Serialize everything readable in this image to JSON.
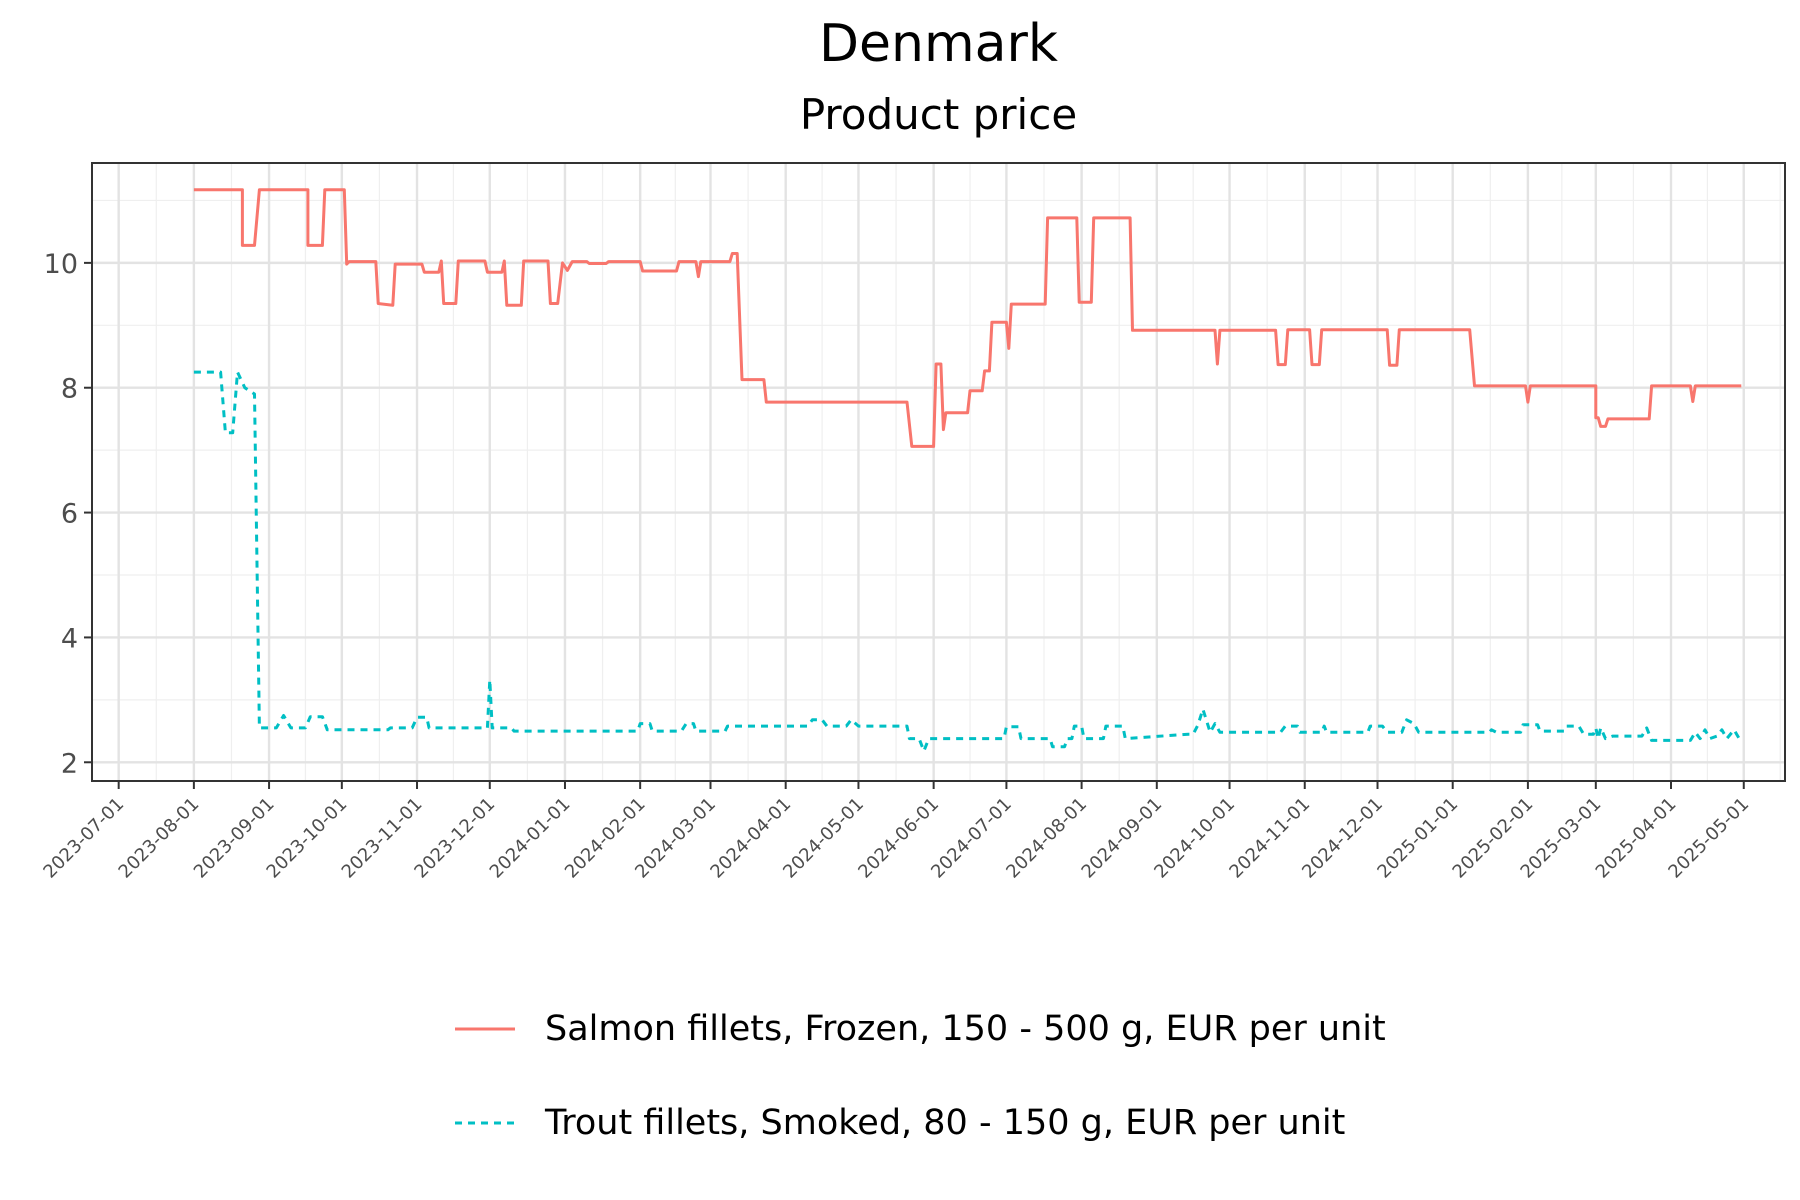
{
  "chart_data": {
    "type": "line",
    "title": "Denmark",
    "subtitle": "Product price",
    "xlabel": "",
    "ylabel": "",
    "x_range": [
      "2023-06-20",
      "2025-05-18"
    ],
    "y_range": [
      1.7,
      11.6
    ],
    "y_ticks": [
      2,
      4,
      6,
      8,
      10
    ],
    "x_ticks": [
      "2023-07-01",
      "2023-08-01",
      "2023-09-01",
      "2023-10-01",
      "2023-11-01",
      "2023-12-01",
      "2024-01-01",
      "2024-02-01",
      "2024-03-01",
      "2024-04-01",
      "2024-05-01",
      "2024-06-01",
      "2024-07-01",
      "2024-08-01",
      "2024-09-01",
      "2024-10-01",
      "2024-11-01",
      "2024-12-01",
      "2025-01-01",
      "2025-02-01",
      "2025-03-01",
      "2025-04-01",
      "2025-05-01"
    ],
    "grid": true,
    "legend_position": "bottom",
    "series": [
      {
        "name": "Salmon fillets, Frozen, 150 - 500 g, EUR per unit",
        "color": "#f8766d",
        "line_style": "solid",
        "points": [
          [
            "2023-08-01",
            11.17
          ],
          [
            "2023-08-21",
            11.17
          ],
          [
            "2023-08-21",
            10.28
          ],
          [
            "2023-08-26",
            10.28
          ],
          [
            "2023-08-28",
            11.17
          ],
          [
            "2023-09-17",
            11.17
          ],
          [
            "2023-09-17",
            10.28
          ],
          [
            "2023-09-23",
            10.28
          ],
          [
            "2023-09-24",
            11.17
          ],
          [
            "2023-10-02",
            11.17
          ],
          [
            "2023-10-03",
            9.98
          ],
          [
            "2023-10-04",
            10.02
          ],
          [
            "2023-10-15",
            10.02
          ],
          [
            "2023-10-16",
            9.35
          ],
          [
            "2023-10-22",
            9.32
          ],
          [
            "2023-10-23",
            9.98
          ],
          [
            "2023-11-03",
            9.98
          ],
          [
            "2023-11-04",
            9.85
          ],
          [
            "2023-11-10",
            9.85
          ],
          [
            "2023-11-11",
            10.03
          ],
          [
            "2023-11-12",
            9.35
          ],
          [
            "2023-11-17",
            9.35
          ],
          [
            "2023-11-18",
            10.03
          ],
          [
            "2023-11-29",
            10.03
          ],
          [
            "2023-11-30",
            9.85
          ],
          [
            "2023-12-06",
            9.85
          ],
          [
            "2023-12-07",
            10.03
          ],
          [
            "2023-12-08",
            9.32
          ],
          [
            "2023-12-14",
            9.32
          ],
          [
            "2023-12-15",
            10.03
          ],
          [
            "2023-12-25",
            10.03
          ],
          [
            "2023-12-26",
            9.35
          ],
          [
            "2023-12-29",
            9.35
          ],
          [
            "2023-12-31",
            10.0
          ],
          [
            "2024-01-02",
            9.88
          ],
          [
            "2024-01-04",
            10.02
          ],
          [
            "2024-01-10",
            10.02
          ],
          [
            "2024-01-11",
            9.99
          ],
          [
            "2024-01-18",
            9.99
          ],
          [
            "2024-01-19",
            10.02
          ],
          [
            "2024-02-01",
            10.02
          ],
          [
            "2024-02-02",
            9.87
          ],
          [
            "2024-02-16",
            9.87
          ],
          [
            "2024-02-17",
            10.02
          ],
          [
            "2024-02-24",
            10.02
          ],
          [
            "2024-02-25",
            9.78
          ],
          [
            "2024-02-26",
            10.02
          ],
          [
            "2024-03-09",
            10.02
          ],
          [
            "2024-03-10",
            10.15
          ],
          [
            "2024-03-12",
            10.15
          ],
          [
            "2024-03-14",
            8.13
          ],
          [
            "2024-03-23",
            8.13
          ],
          [
            "2024-03-24",
            7.77
          ],
          [
            "2024-05-21",
            7.77
          ],
          [
            "2024-05-23",
            7.06
          ],
          [
            "2024-06-01",
            7.06
          ],
          [
            "2024-06-02",
            8.38
          ],
          [
            "2024-06-04",
            8.38
          ],
          [
            "2024-06-05",
            7.33
          ],
          [
            "2024-06-06",
            7.6
          ],
          [
            "2024-06-15",
            7.6
          ],
          [
            "2024-06-16",
            7.95
          ],
          [
            "2024-06-21",
            7.95
          ],
          [
            "2024-06-22",
            8.27
          ],
          [
            "2024-06-24",
            8.27
          ],
          [
            "2024-06-25",
            9.05
          ],
          [
            "2024-07-01",
            9.05
          ],
          [
            "2024-07-02",
            8.63
          ],
          [
            "2024-07-03",
            9.34
          ],
          [
            "2024-07-17",
            9.34
          ],
          [
            "2024-07-18",
            10.72
          ],
          [
            "2024-07-30",
            10.72
          ],
          [
            "2024-07-31",
            9.37
          ],
          [
            "2024-08-05",
            9.37
          ],
          [
            "2024-08-06",
            10.72
          ],
          [
            "2024-08-21",
            10.72
          ],
          [
            "2024-08-22",
            8.92
          ],
          [
            "2024-09-25",
            8.92
          ],
          [
            "2024-09-26",
            8.38
          ],
          [
            "2024-09-27",
            8.92
          ],
          [
            "2024-10-20",
            8.92
          ],
          [
            "2024-10-21",
            8.37
          ],
          [
            "2024-10-24",
            8.37
          ],
          [
            "2024-10-25",
            8.93
          ],
          [
            "2024-11-03",
            8.93
          ],
          [
            "2024-11-04",
            8.37
          ],
          [
            "2024-11-07",
            8.37
          ],
          [
            "2024-11-08",
            8.93
          ],
          [
            "2024-12-05",
            8.93
          ],
          [
            "2024-12-06",
            8.36
          ],
          [
            "2024-12-09",
            8.36
          ],
          [
            "2024-12-10",
            8.93
          ],
          [
            "2025-01-08",
            8.93
          ],
          [
            "2025-01-10",
            8.03
          ],
          [
            "2025-01-31",
            8.03
          ],
          [
            "2025-02-01",
            7.77
          ],
          [
            "2025-02-02",
            8.03
          ],
          [
            "2025-02-29",
            8.03
          ],
          [
            "2025-02-29",
            7.52
          ],
          [
            "2025-03-02",
            7.52
          ],
          [
            "2025-03-03",
            7.38
          ],
          [
            "2025-03-05",
            7.38
          ],
          [
            "2025-03-06",
            7.5
          ],
          [
            "2025-03-23",
            7.5
          ],
          [
            "2025-03-24",
            8.03
          ],
          [
            "2025-04-09",
            8.03
          ],
          [
            "2025-04-10",
            7.78
          ],
          [
            "2025-04-11",
            8.03
          ],
          [
            "2025-04-30",
            8.03
          ]
        ]
      },
      {
        "name": "Trout fillets, Smoked, 80 - 150 g, EUR per unit",
        "color": "#00bfc4",
        "line_style": "dashed",
        "points": [
          [
            "2023-08-01",
            8.25
          ],
          [
            "2023-08-12",
            8.25
          ],
          [
            "2023-08-14",
            7.28
          ],
          [
            "2023-08-17",
            7.28
          ],
          [
            "2023-08-19",
            8.25
          ],
          [
            "2023-08-22",
            8.0
          ],
          [
            "2023-08-26",
            7.9
          ],
          [
            "2023-08-28",
            2.55
          ],
          [
            "2023-09-04",
            2.55
          ],
          [
            "2023-09-07",
            2.75
          ],
          [
            "2023-09-10",
            2.55
          ],
          [
            "2023-09-16",
            2.55
          ],
          [
            "2023-09-18",
            2.73
          ],
          [
            "2023-09-23",
            2.73
          ],
          [
            "2023-09-25",
            2.52
          ],
          [
            "2023-10-20",
            2.52
          ],
          [
            "2023-10-21",
            2.55
          ],
          [
            "2023-10-30",
            2.55
          ],
          [
            "2023-11-01",
            2.72
          ],
          [
            "2023-11-05",
            2.72
          ],
          [
            "2023-11-06",
            2.55
          ],
          [
            "2023-11-30",
            2.55
          ],
          [
            "2023-12-01",
            3.32
          ],
          [
            "2023-12-02",
            2.55
          ],
          [
            "2023-12-10",
            2.55
          ],
          [
            "2023-12-11",
            2.5
          ],
          [
            "2024-01-31",
            2.5
          ],
          [
            "2024-02-01",
            2.62
          ],
          [
            "2024-02-05",
            2.62
          ],
          [
            "2024-02-06",
            2.5
          ],
          [
            "2024-02-18",
            2.5
          ],
          [
            "2024-02-20",
            2.62
          ],
          [
            "2024-02-23",
            2.62
          ],
          [
            "2024-02-24",
            2.5
          ],
          [
            "2024-03-07",
            2.5
          ],
          [
            "2024-03-08",
            2.58
          ],
          [
            "2024-04-10",
            2.58
          ],
          [
            "2024-04-12",
            2.68
          ],
          [
            "2024-04-16",
            2.68
          ],
          [
            "2024-04-18",
            2.58
          ],
          [
            "2024-04-26",
            2.58
          ],
          [
            "2024-04-28",
            2.68
          ],
          [
            "2024-05-01",
            2.58
          ],
          [
            "2024-05-21",
            2.58
          ],
          [
            "2024-05-22",
            2.38
          ],
          [
            "2024-05-26",
            2.38
          ],
          [
            "2024-05-28",
            2.18
          ],
          [
            "2024-05-30",
            2.38
          ],
          [
            "2024-06-30",
            2.38
          ],
          [
            "2024-07-01",
            2.57
          ],
          [
            "2024-07-06",
            2.57
          ],
          [
            "2024-07-07",
            2.38
          ],
          [
            "2024-07-19",
            2.38
          ],
          [
            "2024-07-20",
            2.25
          ],
          [
            "2024-07-25",
            2.25
          ],
          [
            "2024-07-26",
            2.38
          ],
          [
            "2024-07-28",
            2.38
          ],
          [
            "2024-07-29",
            2.58
          ],
          [
            "2024-08-01",
            2.58
          ],
          [
            "2024-08-02",
            2.38
          ],
          [
            "2024-08-10",
            2.38
          ],
          [
            "2024-08-11",
            2.58
          ],
          [
            "2024-08-18",
            2.58
          ],
          [
            "2024-08-19",
            2.38
          ],
          [
            "2024-09-14",
            2.45
          ],
          [
            "2024-09-16",
            2.45
          ],
          [
            "2024-09-18",
            2.6
          ],
          [
            "2024-09-20",
            2.85
          ],
          [
            "2024-09-23",
            2.48
          ],
          [
            "2024-09-25",
            2.62
          ],
          [
            "2024-09-27",
            2.48
          ],
          [
            "2024-10-22",
            2.48
          ],
          [
            "2024-10-24",
            2.58
          ],
          [
            "2024-10-29",
            2.58
          ],
          [
            "2024-10-30",
            2.48
          ],
          [
            "2024-11-08",
            2.48
          ],
          [
            "2024-11-09",
            2.58
          ],
          [
            "2024-11-10",
            2.48
          ],
          [
            "2024-11-27",
            2.48
          ],
          [
            "2024-11-28",
            2.58
          ],
          [
            "2024-12-03",
            2.58
          ],
          [
            "2024-12-05",
            2.48
          ],
          [
            "2024-12-11",
            2.48
          ],
          [
            "2024-12-13",
            2.68
          ],
          [
            "2024-12-16",
            2.62
          ],
          [
            "2024-12-18",
            2.48
          ],
          [
            "2025-01-16",
            2.48
          ],
          [
            "2025-01-17",
            2.52
          ],
          [
            "2025-01-19",
            2.48
          ],
          [
            "2025-01-29",
            2.48
          ],
          [
            "2025-01-30",
            2.6
          ],
          [
            "2025-02-05",
            2.6
          ],
          [
            "2025-02-06",
            2.5
          ],
          [
            "2025-02-16",
            2.5
          ],
          [
            "2025-02-17",
            2.58
          ],
          [
            "2025-02-22",
            2.58
          ],
          [
            "2025-02-24",
            2.45
          ],
          [
            "2025-02-28",
            2.45
          ],
          [
            "2025-03-01",
            2.55
          ],
          [
            "2025-03-02",
            2.38
          ],
          [
            "2025-03-03",
            2.55
          ],
          [
            "2025-03-05",
            2.38
          ],
          [
            "2025-03-08",
            2.42
          ],
          [
            "2025-03-20",
            2.42
          ],
          [
            "2025-03-22",
            2.55
          ],
          [
            "2025-03-24",
            2.35
          ],
          [
            "2025-04-09",
            2.35
          ],
          [
            "2025-04-11",
            2.48
          ],
          [
            "2025-04-13",
            2.38
          ],
          [
            "2025-04-15",
            2.52
          ],
          [
            "2025-04-17",
            2.38
          ],
          [
            "2025-04-20",
            2.42
          ],
          [
            "2025-04-22",
            2.52
          ],
          [
            "2025-04-24",
            2.38
          ],
          [
            "2025-04-27",
            2.52
          ],
          [
            "2025-04-30",
            2.32
          ]
        ]
      }
    ]
  }
}
